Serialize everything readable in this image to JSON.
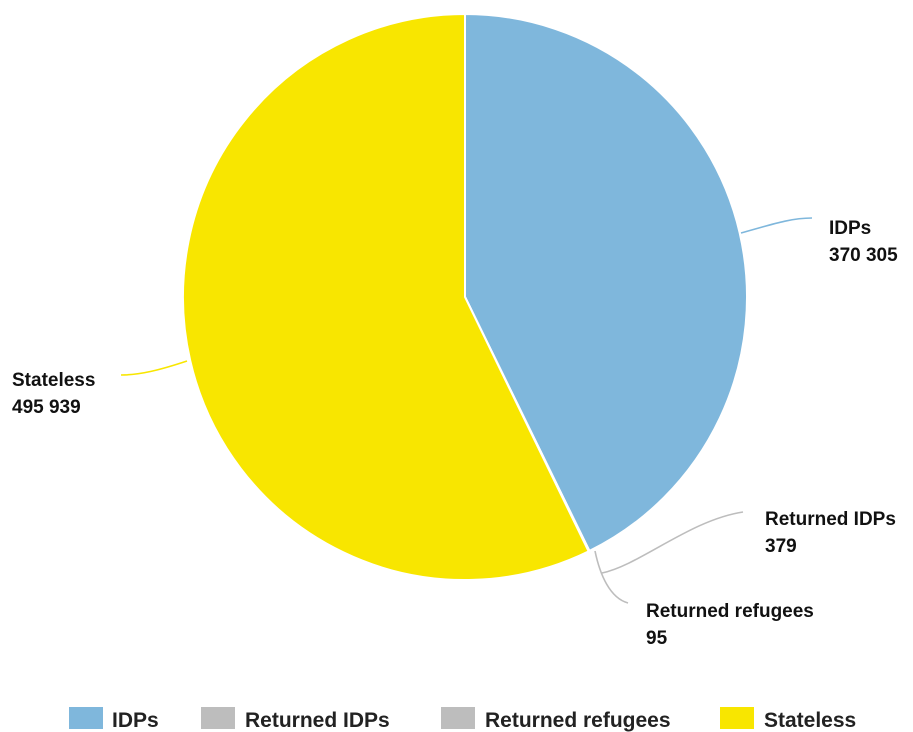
{
  "chart_data": {
    "type": "pie",
    "title": "",
    "series": [
      {
        "name": "IDPs",
        "value": 370305,
        "label": "IDPs",
        "value_text": "370 305",
        "color": "#7fb7dc"
      },
      {
        "name": "Returned IDPs",
        "value": 379,
        "label": "Returned IDPs",
        "value_text": "379",
        "color": "#bdbdbd"
      },
      {
        "name": "Returned refugees",
        "value": 95,
        "label": "Returned refugees",
        "value_text": "95",
        "color": "#bdbdbd"
      },
      {
        "name": "Stateless",
        "value": 495939,
        "label": "Stateless",
        "value_text": "495 939",
        "color": "#f8e600"
      }
    ],
    "legend": {
      "position": "bottom",
      "items": [
        "IDPs",
        "Returned IDPs",
        "Returned refugees",
        "Stateless"
      ]
    }
  }
}
